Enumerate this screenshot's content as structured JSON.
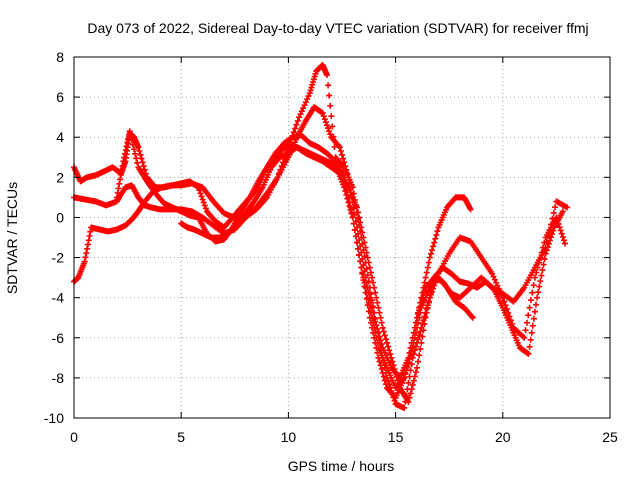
{
  "chart_data": {
    "type": "scatter",
    "title": "Day 073 of 2022, Sidereal Day-to-day VTEC variation (SDTVAR) for receiver ffmj",
    "xlabel": "GPS time / hours",
    "ylabel": "SDTVAR / TECUs",
    "xlim": [
      0,
      25
    ],
    "ylim": [
      -10,
      8
    ],
    "x_ticks": [
      0,
      5,
      10,
      15,
      20,
      25
    ],
    "y_ticks": [
      -10,
      -8,
      -6,
      -4,
      -2,
      0,
      2,
      4,
      6,
      8
    ],
    "x_tick_labels": [
      "0",
      "5",
      "10",
      "15",
      "20",
      "25"
    ],
    "y_tick_labels": [
      "-10",
      "-8",
      "-6",
      "-4",
      "-2",
      "0",
      "2",
      "4",
      "6",
      "8"
    ],
    "grid": true,
    "marker": "+",
    "color": "#ff0000",
    "series": [
      {
        "x": [
          0.0,
          0.3,
          0.6,
          1.0,
          1.4,
          1.8,
          2.2,
          2.4,
          2.6,
          2.8,
          3.0,
          3.4,
          3.8,
          4.2,
          4.6,
          5.0,
          5.4,
          5.8,
          6.2,
          6.6,
          7.0,
          7.4,
          7.8,
          8.2,
          8.6,
          9.0,
          9.4,
          9.8,
          10.2,
          10.6,
          11.0,
          11.4,
          11.8,
          12.2,
          12.6,
          13.0,
          13.4,
          13.8,
          14.2,
          14.6,
          15.0,
          15.4,
          15.8,
          16.2,
          16.6,
          17.0,
          17.4,
          17.8,
          18.2,
          18.5
        ],
        "y": [
          2.5,
          1.8,
          2.0,
          2.1,
          2.3,
          2.5,
          2.2,
          2.8,
          4.2,
          4.0,
          3.5,
          2.0,
          1.5,
          1.5,
          1.6,
          1.7,
          1.8,
          1.5,
          0.3,
          -0.2,
          -0.5,
          0.0,
          0.5,
          1.0,
          1.5,
          2.5,
          3.2,
          3.7,
          4.0,
          4.1,
          3.7,
          3.5,
          3.2,
          2.8,
          2.0,
          0.0,
          -2.5,
          -5.0,
          -7.0,
          -8.5,
          -9.0,
          -8.0,
          -6.0,
          -4.0,
          -2.0,
          -0.5,
          0.5,
          1.0,
          1.0,
          0.4
        ]
      },
      {
        "x": [
          0.0,
          0.2,
          0.5,
          0.8,
          1.2,
          1.6,
          2.0,
          2.4,
          2.7,
          3.0,
          3.3,
          3.7,
          4.1,
          4.5,
          5.0,
          5.5,
          6.0,
          6.5,
          7.0,
          7.5,
          8.0,
          8.5,
          9.0,
          9.5,
          10.0,
          10.5,
          11.0,
          11.3,
          11.6,
          11.8,
          12.2,
          12.6,
          13.0,
          13.4,
          13.8,
          14.2,
          14.6,
          15.0,
          15.4,
          15.8,
          16.2,
          16.6,
          17.0,
          17.5,
          18.0,
          18.5,
          19.0,
          19.5,
          20.0,
          20.5,
          21.0,
          21.5,
          22.0,
          22.5,
          22.9
        ],
        "y": [
          -3.2,
          -3.0,
          -2.2,
          -0.5,
          -0.6,
          -0.7,
          -0.6,
          -0.4,
          -0.1,
          0.3,
          0.8,
          1.3,
          1.5,
          1.6,
          1.6,
          1.7,
          1.5,
          0.8,
          0.2,
          0.0,
          0.0,
          0.4,
          1.0,
          2.0,
          3.5,
          5.0,
          6.2,
          7.3,
          7.6,
          7.1,
          3.0,
          2.5,
          1.5,
          -1.0,
          -3.5,
          -6.0,
          -8.0,
          -9.3,
          -9.5,
          -7.0,
          -5.5,
          -4.0,
          -2.8,
          -1.8,
          -1.0,
          -1.2,
          -2.0,
          -2.8,
          -4.0,
          -5.5,
          -6.0,
          -3.0,
          -1.0,
          0.0,
          -1.3
        ]
      },
      {
        "x": [
          0.0,
          0.5,
          1.0,
          1.5,
          2.0,
          2.4,
          2.7,
          3.0,
          3.3,
          3.6,
          4.0,
          4.5,
          5.0,
          5.5,
          6.0,
          6.5,
          7.0,
          7.5,
          8.0,
          8.5,
          9.0,
          9.5,
          10.0,
          10.4,
          10.8,
          11.2,
          11.6,
          12.0,
          12.4,
          12.8,
          13.2,
          13.6,
          14.0,
          14.4,
          14.8,
          15.2,
          15.6,
          16.0,
          16.4,
          16.8,
          17.2,
          17.6,
          18.0,
          18.5,
          19.0,
          19.5,
          20.0,
          20.5,
          21.0,
          21.5,
          22.0,
          22.5,
          23.0
        ],
        "y": [
          1.0,
          0.9,
          0.8,
          0.6,
          0.8,
          1.5,
          1.6,
          1.0,
          0.6,
          0.5,
          0.4,
          0.4,
          0.4,
          0.3,
          0.0,
          -0.4,
          -0.8,
          -0.6,
          0.0,
          0.5,
          1.2,
          2.0,
          3.0,
          4.0,
          4.8,
          5.5,
          5.2,
          4.0,
          3.5,
          2.0,
          -0.5,
          -3.0,
          -5.0,
          -6.5,
          -7.5,
          -8.0,
          -7.0,
          -5.0,
          -3.5,
          -3.0,
          -3.2,
          -3.8,
          -4.0,
          -3.5,
          -3.0,
          -3.5,
          -3.8,
          -4.2,
          -3.5,
          -2.5,
          -1.5,
          0.8,
          0.5
        ]
      },
      {
        "x": [
          2.0,
          2.3,
          2.6,
          3.0,
          3.4,
          3.8,
          4.2,
          4.6,
          5.0,
          5.4,
          5.8,
          6.2,
          6.6,
          7.0,
          7.4,
          7.8,
          8.2,
          8.6,
          9.0,
          9.4,
          9.8,
          10.2,
          10.6,
          11.0,
          11.4,
          11.8,
          12.2,
          12.6,
          13.0,
          13.4,
          13.8,
          14.2,
          14.6,
          15.0,
          15.4,
          15.8,
          16.2,
          16.6,
          17.0,
          17.4,
          17.8,
          18.2,
          18.6
        ],
        "y": [
          1.0,
          2.8,
          4.3,
          2.5,
          1.8,
          1.2,
          0.7,
          0.5,
          0.3,
          0.1,
          0.0,
          -0.8,
          -1.2,
          -1.1,
          -0.5,
          0.3,
          1.0,
          1.8,
          2.5,
          3.0,
          3.5,
          3.6,
          3.4,
          3.2,
          3.0,
          2.8,
          2.6,
          1.5,
          0.0,
          -2.5,
          -4.5,
          -6.5,
          -7.5,
          -8.5,
          -8.0,
          -6.5,
          -4.5,
          -3.5,
          -3.0,
          -3.5,
          -4.2,
          -4.5,
          -5.0
        ]
      },
      {
        "x": [
          5.0,
          5.3,
          5.6,
          6.0,
          6.4,
          6.8,
          7.2,
          7.6,
          8.0,
          8.4,
          8.8,
          9.2,
          9.6,
          10.0,
          10.4,
          10.8,
          11.2,
          11.6,
          12.0,
          12.4,
          12.8,
          13.2,
          13.6,
          14.0,
          14.4,
          14.8,
          15.2,
          15.6,
          16.0,
          16.4,
          16.8,
          17.2,
          17.6,
          18.0,
          18.4,
          18.8,
          19.2,
          19.6,
          20.0,
          20.4,
          20.8,
          21.2,
          21.6,
          22.0,
          22.4,
          22.8
        ],
        "y": [
          -0.3,
          -0.5,
          -0.6,
          -0.8,
          -1.0,
          -1.0,
          -0.8,
          -0.3,
          0.2,
          0.8,
          1.5,
          2.5,
          3.0,
          3.2,
          3.5,
          3.2,
          3.0,
          2.8,
          2.5,
          2.2,
          1.5,
          0.5,
          -1.5,
          -3.5,
          -5.5,
          -7.0,
          -8.5,
          -9.2,
          -7.5,
          -5.0,
          -3.0,
          -2.5,
          -2.8,
          -3.2,
          -3.3,
          -3.5,
          -3.2,
          -3.6,
          -4.5,
          -5.5,
          -6.5,
          -6.8,
          -4.0,
          -1.8,
          -0.5,
          0.3
        ]
      }
    ]
  }
}
